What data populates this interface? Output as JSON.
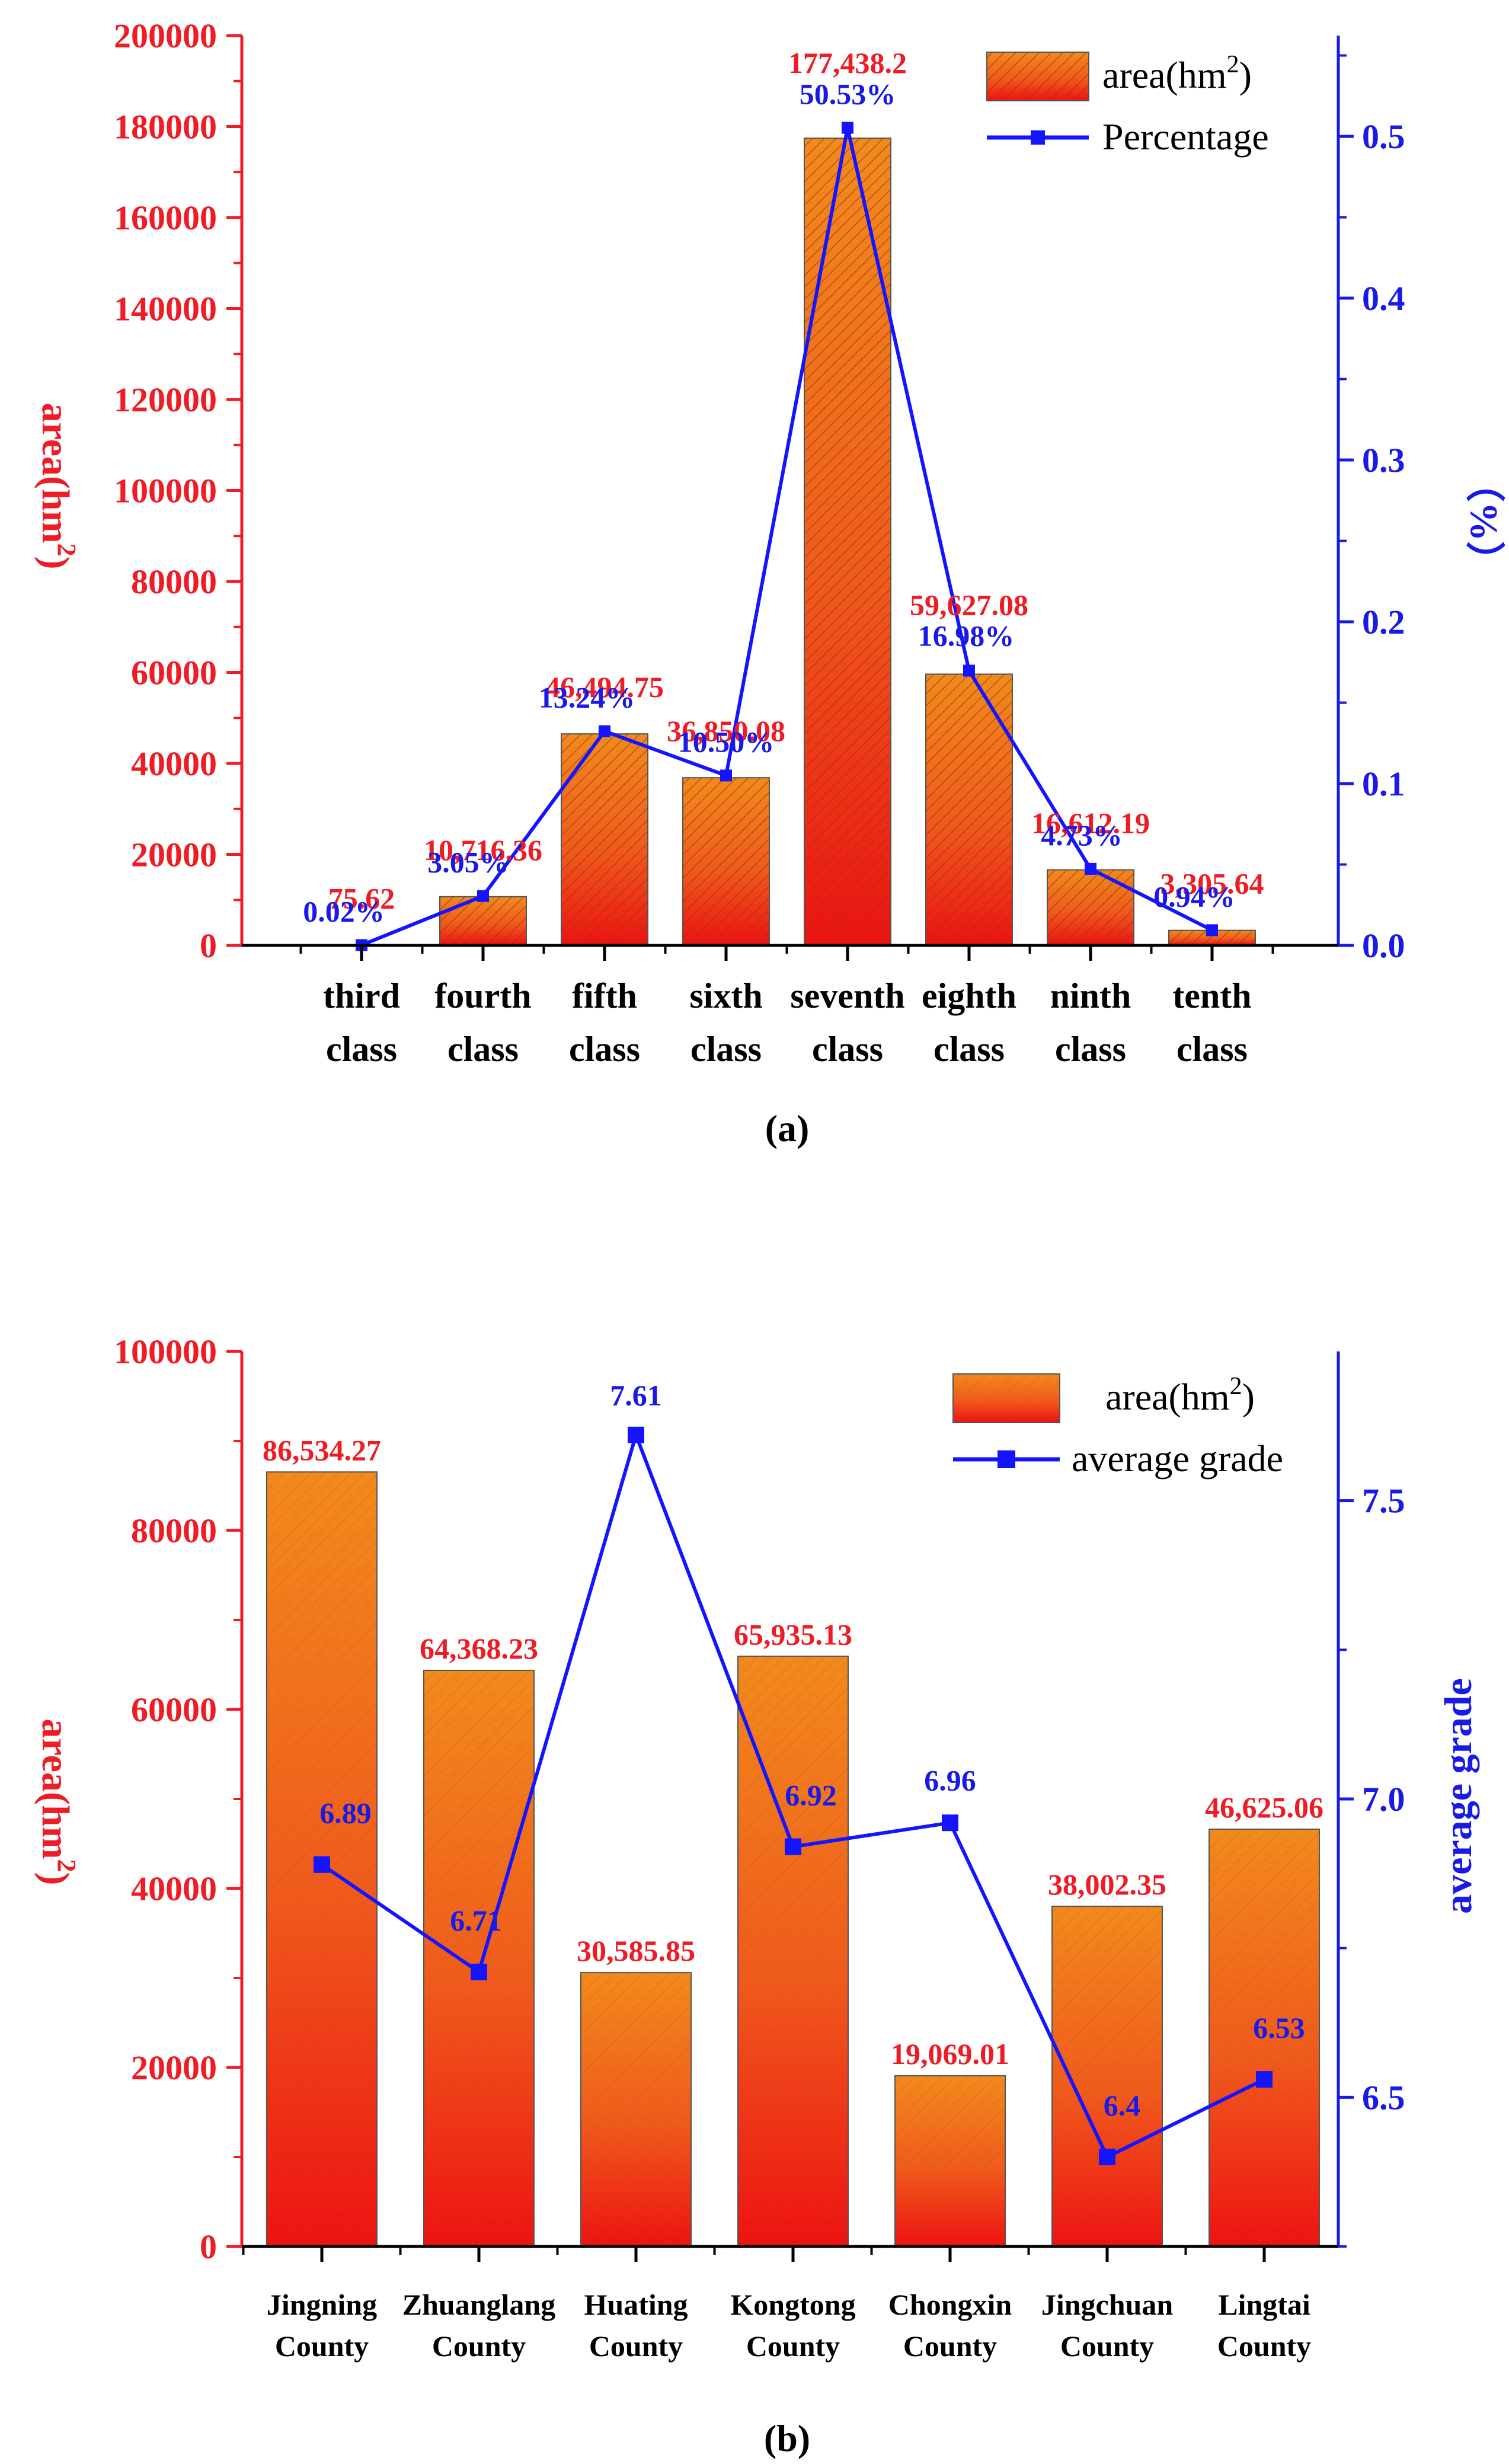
{
  "colors": {
    "bar_top": "#f28a1c",
    "bar_bottom": "#ee1c18",
    "line": "#1414ff",
    "left_axis": "#ee1c25",
    "right_axis": "#1a1ae6"
  },
  "chart_data": [
    {
      "type": "bar",
      "panel_label": "(a)",
      "categories": [
        [
          "third",
          "class"
        ],
        [
          "fourth",
          "class"
        ],
        [
          "fifth",
          "class"
        ],
        [
          "sixth",
          "class"
        ],
        [
          "seventh",
          "class"
        ],
        [
          "eighth",
          "class"
        ],
        [
          "ninth",
          "class"
        ],
        [
          "tenth",
          "class"
        ]
      ],
      "series": [
        {
          "name": "area",
          "axis": "left",
          "values": [
            75.62,
            10716.36,
            46494.75,
            36850.08,
            177438.2,
            59627.08,
            16612.19,
            3305.64
          ],
          "labels": [
            "75.62",
            "10,716.36",
            "46,494.75",
            "36,850.08",
            "177,438.2",
            "59,627.08",
            "16,612.19",
            "3,305.64"
          ]
        },
        {
          "name": "Percentage",
          "axis": "right",
          "type": "line",
          "values": [
            0.0002,
            0.0305,
            0.1324,
            0.105,
            0.5053,
            0.1698,
            0.0473,
            0.0094
          ],
          "labels": [
            "0.02%",
            "3.05%",
            "13.24%",
            "10.50%",
            "50.53%",
            "16.98%",
            "4.73%",
            "0.94%"
          ]
        }
      ],
      "legend": {
        "bar": "area(hm",
        "bar_sup": "2",
        "bar_close": ")",
        "line": "Percentage"
      },
      "ylabel_left": {
        "text": "area(hm",
        "sup": "2",
        "close": ")"
      },
      "ylabel_right": "（%）",
      "ylim_left": [
        0,
        200000
      ],
      "yticks_left": [
        "0",
        "20000",
        "40000",
        "60000",
        "80000",
        "100000",
        "120000",
        "140000",
        "160000",
        "180000",
        "200000"
      ],
      "ylim_right": [
        0,
        0.5623
      ],
      "yticks_right": [
        "0.0",
        "0.1",
        "0.2",
        "0.3",
        "0.4",
        "0.5"
      ],
      "legend_position": "top-right"
    },
    {
      "type": "bar",
      "panel_label": "(b)",
      "categories": [
        [
          "Jingning",
          "County"
        ],
        [
          "Zhuanglang",
          "County"
        ],
        [
          "Huating",
          "County"
        ],
        [
          "Kongtong",
          "County"
        ],
        [
          "Chongxin",
          "County"
        ],
        [
          "Jingchuan",
          "County"
        ],
        [
          "Lingtai",
          "County"
        ]
      ],
      "series": [
        {
          "name": "area",
          "axis": "left",
          "values": [
            86534.27,
            64368.23,
            30585.85,
            65935.13,
            19069.01,
            38002.35,
            46625.06
          ],
          "labels": [
            "86,534.27",
            "64,368.23",
            "30,585.85",
            "65,935.13",
            "19,069.01",
            "38,002.35",
            "46,625.06"
          ]
        },
        {
          "name": "average grade",
          "axis": "right",
          "type": "line",
          "values": [
            6.89,
            6.71,
            7.61,
            6.92,
            6.96,
            6.4,
            6.53
          ],
          "labels": [
            "6.89",
            "6.71",
            "7.61",
            "6.92",
            "6.96",
            "6.4",
            "6.53"
          ]
        }
      ],
      "legend": {
        "bar": "area(hm",
        "bar_sup": "2",
        "bar_close": ")",
        "line": "average grade"
      },
      "ylabel_left": {
        "text": "area(hm",
        "sup": "2",
        "close": ")"
      },
      "ylabel_right": "average grade",
      "ylim_left": [
        0,
        100000
      ],
      "yticks_left": [
        "0",
        "20000",
        "40000",
        "60000",
        "80000",
        "100000"
      ],
      "ylim_right": [
        6.25,
        7.75
      ],
      "yticks_right": [
        "6.5",
        "7.0",
        "7.5"
      ],
      "legend_position": "top-right"
    }
  ]
}
